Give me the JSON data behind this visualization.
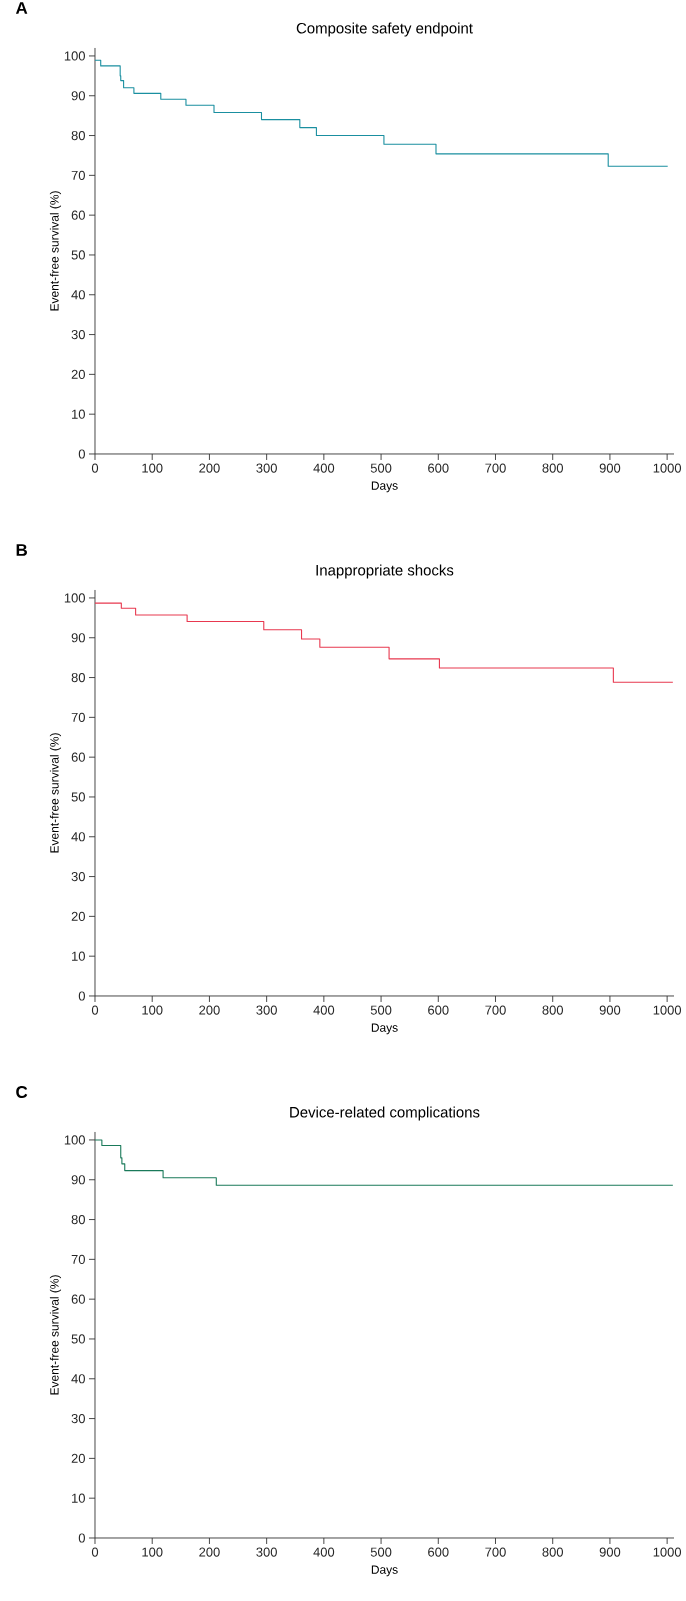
{
  "chart_data": [
    {
      "type": "step",
      "title": "Composite safety endpoint",
      "xlabel": "Days",
      "ylabel": "Event-free survival (%)",
      "annotations": [
        "A"
      ],
      "color": "#1a8fa0",
      "x": [
        0,
        10,
        44,
        45,
        50,
        68,
        115,
        159,
        208,
        291,
        358,
        387,
        505,
        596,
        897,
        1001
      ],
      "values": [
        98.9,
        97.5,
        95,
        93.8,
        92,
        90.6,
        89.1,
        87.6,
        85.8,
        84,
        82,
        80,
        77.8,
        75.4,
        72.3,
        72.3
      ],
      "xlim": [
        0,
        1012
      ],
      "ylim": [
        0,
        102
      ],
      "xticks": [
        0,
        100,
        200,
        300,
        400,
        500,
        600,
        700,
        800,
        900,
        1000
      ],
      "yticks": [
        0,
        10,
        20,
        30,
        40,
        50,
        60,
        70,
        80,
        90,
        100
      ]
    },
    {
      "type": "step",
      "title": "Inappropriate shocks",
      "xlabel": "Days",
      "ylabel": "Event-free survival (%)",
      "annotations": [
        "B"
      ],
      "color": "#e8384f",
      "x": [
        0,
        46,
        71,
        161,
        295,
        361,
        393,
        514,
        602,
        906,
        1010
      ],
      "values": [
        98.7,
        97.4,
        95.7,
        94.1,
        92,
        89.7,
        87.6,
        84.7,
        82.4,
        78.8,
        78.8
      ],
      "xlim": [
        0,
        1012
      ],
      "ylim": [
        0,
        102
      ],
      "xticks": [
        0,
        100,
        200,
        300,
        400,
        500,
        600,
        700,
        800,
        900,
        1000
      ],
      "yticks": [
        0,
        10,
        20,
        30,
        40,
        50,
        60,
        70,
        80,
        90,
        100
      ]
    },
    {
      "type": "step",
      "title": "Device-related complications",
      "xlabel": "Days",
      "ylabel": "Event-free survival (%)",
      "annotations": [
        "C"
      ],
      "color": "#1a7a5a",
      "x": [
        0,
        12,
        45,
        47,
        52,
        119,
        212,
        1010
      ],
      "values": [
        100,
        98.6,
        95.5,
        94,
        92.3,
        90.5,
        88.6,
        88.6
      ],
      "xlim": [
        0,
        1012
      ],
      "ylim": [
        0,
        102
      ],
      "xticks": [
        0,
        100,
        200,
        300,
        400,
        500,
        600,
        700,
        800,
        900,
        1000
      ],
      "yticks": [
        0,
        10,
        20,
        30,
        40,
        50,
        60,
        70,
        80,
        90,
        100
      ]
    }
  ]
}
